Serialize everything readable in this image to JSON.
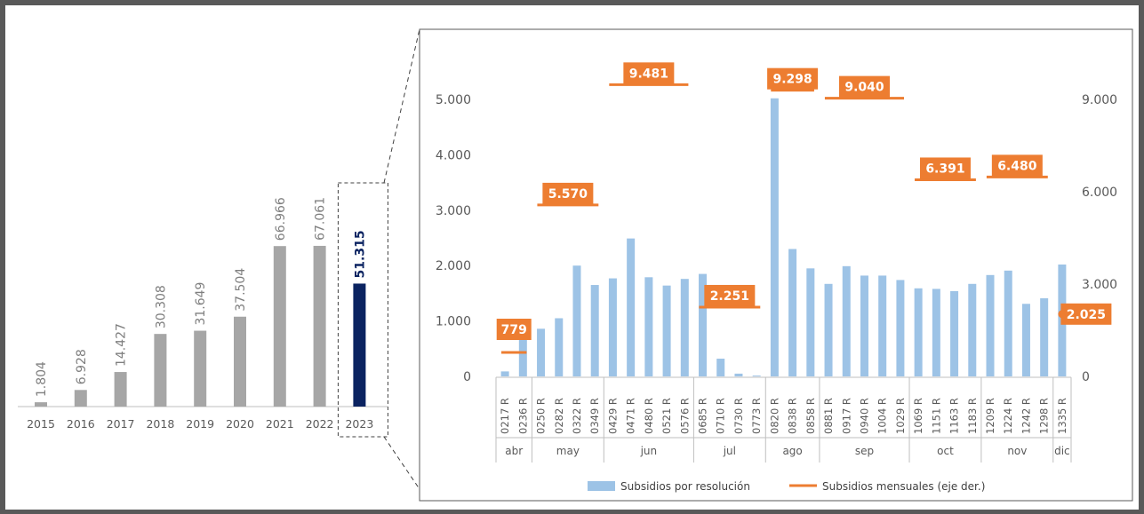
{
  "chart_data": [
    {
      "type": "bar",
      "categories": [
        "2015",
        "2016",
        "2017",
        "2018",
        "2019",
        "2020",
        "2021",
        "2022",
        "2023"
      ],
      "values": [
        1804,
        6928,
        14427,
        30308,
        31649,
        37504,
        66966,
        67061,
        51315
      ],
      "value_labels": [
        "1.804",
        "6.928",
        "14.427",
        "30.308",
        "31.649",
        "37.504",
        "66.966",
        "67.061",
        "51.315"
      ],
      "highlight_category": "2023",
      "colors": {
        "default": "#a6a6a6",
        "highlight": "#0b2361"
      },
      "ylim": [
        0,
        80000
      ],
      "grid": false
    },
    {
      "type": "bar",
      "categories": [
        "0217 R",
        "0236 R",
        "0250 R",
        "0282 R",
        "0322 R",
        "0349 R",
        "0429 R",
        "0471 R",
        "0480 R",
        "0521 R",
        "0576 R",
        "0685 R",
        "0710 R",
        "0730 R",
        "0773 R",
        "0820 R",
        "0838 R",
        "0858 R",
        "0881 R",
        "0917 R",
        "0940 R",
        "1004 R",
        "1029 R",
        "1069 R",
        "1151 R",
        "1163 R",
        "1183 R",
        "1209 R",
        "1224 R",
        "1242 R",
        "1298 R",
        "1335 R"
      ],
      "series": [
        {
          "name": "Subsidios por resolución",
          "axis": "left",
          "color": "#9dc3e6",
          "values": [
            90,
            690,
            860,
            1050,
            2000,
            1650,
            1770,
            2490,
            1790,
            1640,
            1760,
            1850,
            320,
            50,
            15,
            5020,
            2300,
            1950,
            1670,
            1990,
            1820,
            1820,
            1740,
            1590,
            1580,
            1540,
            1670,
            1830,
            1910,
            1310,
            1410,
            2020
          ]
        },
        {
          "name": "Subsidios mensuales (eje der.)",
          "axis": "right",
          "type": "line",
          "color": "#ed7d31",
          "months": [
            {
              "label": "abr",
              "value": 779,
              "value_label": "779",
              "start": 0,
              "count": 2
            },
            {
              "label": "may",
              "value": 5570,
              "value_label": "5.570",
              "start": 2,
              "count": 4
            },
            {
              "label": "jun",
              "value": 9481,
              "value_label": "9.481",
              "start": 6,
              "count": 5
            },
            {
              "label": "jul",
              "value": 2251,
              "value_label": "2.251",
              "start": 11,
              "count": 4
            },
            {
              "label": "ago",
              "value": 9298,
              "value_label": "9.298",
              "start": 15,
              "count": 3
            },
            {
              "label": "sep",
              "value": 9040,
              "value_label": "9.040",
              "start": 18,
              "count": 5
            },
            {
              "label": "oct",
              "value": 6391,
              "value_label": "6.391",
              "start": 23,
              "count": 4
            },
            {
              "label": "nov",
              "value": 6480,
              "value_label": "6.480",
              "start": 27,
              "count": 4
            },
            {
              "label": "dic",
              "value": 2025,
              "value_label": "2.025",
              "start": 31,
              "count": 1
            }
          ]
        }
      ],
      "left_axis": {
        "ylim": [
          0,
          5000
        ],
        "ticks": [
          0,
          1000,
          2000,
          3000,
          4000,
          5000
        ],
        "tick_labels": [
          "0",
          "1.000",
          "2.000",
          "3.000",
          "4.000",
          "5.000"
        ]
      },
      "right_axis": {
        "ylim": [
          0,
          9000
        ],
        "ticks": [
          0,
          3000,
          6000,
          9000
        ],
        "tick_labels": [
          "0",
          "3.000",
          "6.000",
          "9.000"
        ]
      },
      "legend_position": "bottom",
      "grid": false
    }
  ]
}
